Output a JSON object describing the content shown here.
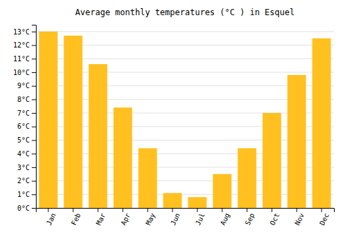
{
  "chart_data": {
    "type": "bar",
    "title": "Average monthly temperatures (°C ) in Esquel",
    "categories": [
      "Jan",
      "Feb",
      "Mar",
      "Apr",
      "May",
      "Jun",
      "Jul",
      "Aug",
      "Sep",
      "Oct",
      "Nov",
      "Dec"
    ],
    "values": [
      13.0,
      12.7,
      10.6,
      7.4,
      4.4,
      1.1,
      0.8,
      2.5,
      4.4,
      7.0,
      9.8,
      12.5
    ],
    "color": "#FFC020",
    "ylim": [
      0,
      13.5
    ],
    "yticks": [
      {
        "value": 0,
        "label": "0°C"
      },
      {
        "value": 1,
        "label": "1°C"
      },
      {
        "value": 2,
        "label": "2°C"
      },
      {
        "value": 3,
        "label": "3°C"
      },
      {
        "value": 4,
        "label": "4°C"
      },
      {
        "value": 5,
        "label": "5°C"
      },
      {
        "value": 6,
        "label": "6°C"
      },
      {
        "value": 7,
        "label": "7°C"
      },
      {
        "value": 8,
        "label": "8°C"
      },
      {
        "value": 9,
        "label": "9°C"
      },
      {
        "value": 10,
        "label": "10°C"
      },
      {
        "value": 11,
        "label": "11°C"
      },
      {
        "value": 12,
        "label": "12°C"
      },
      {
        "value": 13,
        "label": "13°C"
      }
    ],
    "grid": true
  }
}
